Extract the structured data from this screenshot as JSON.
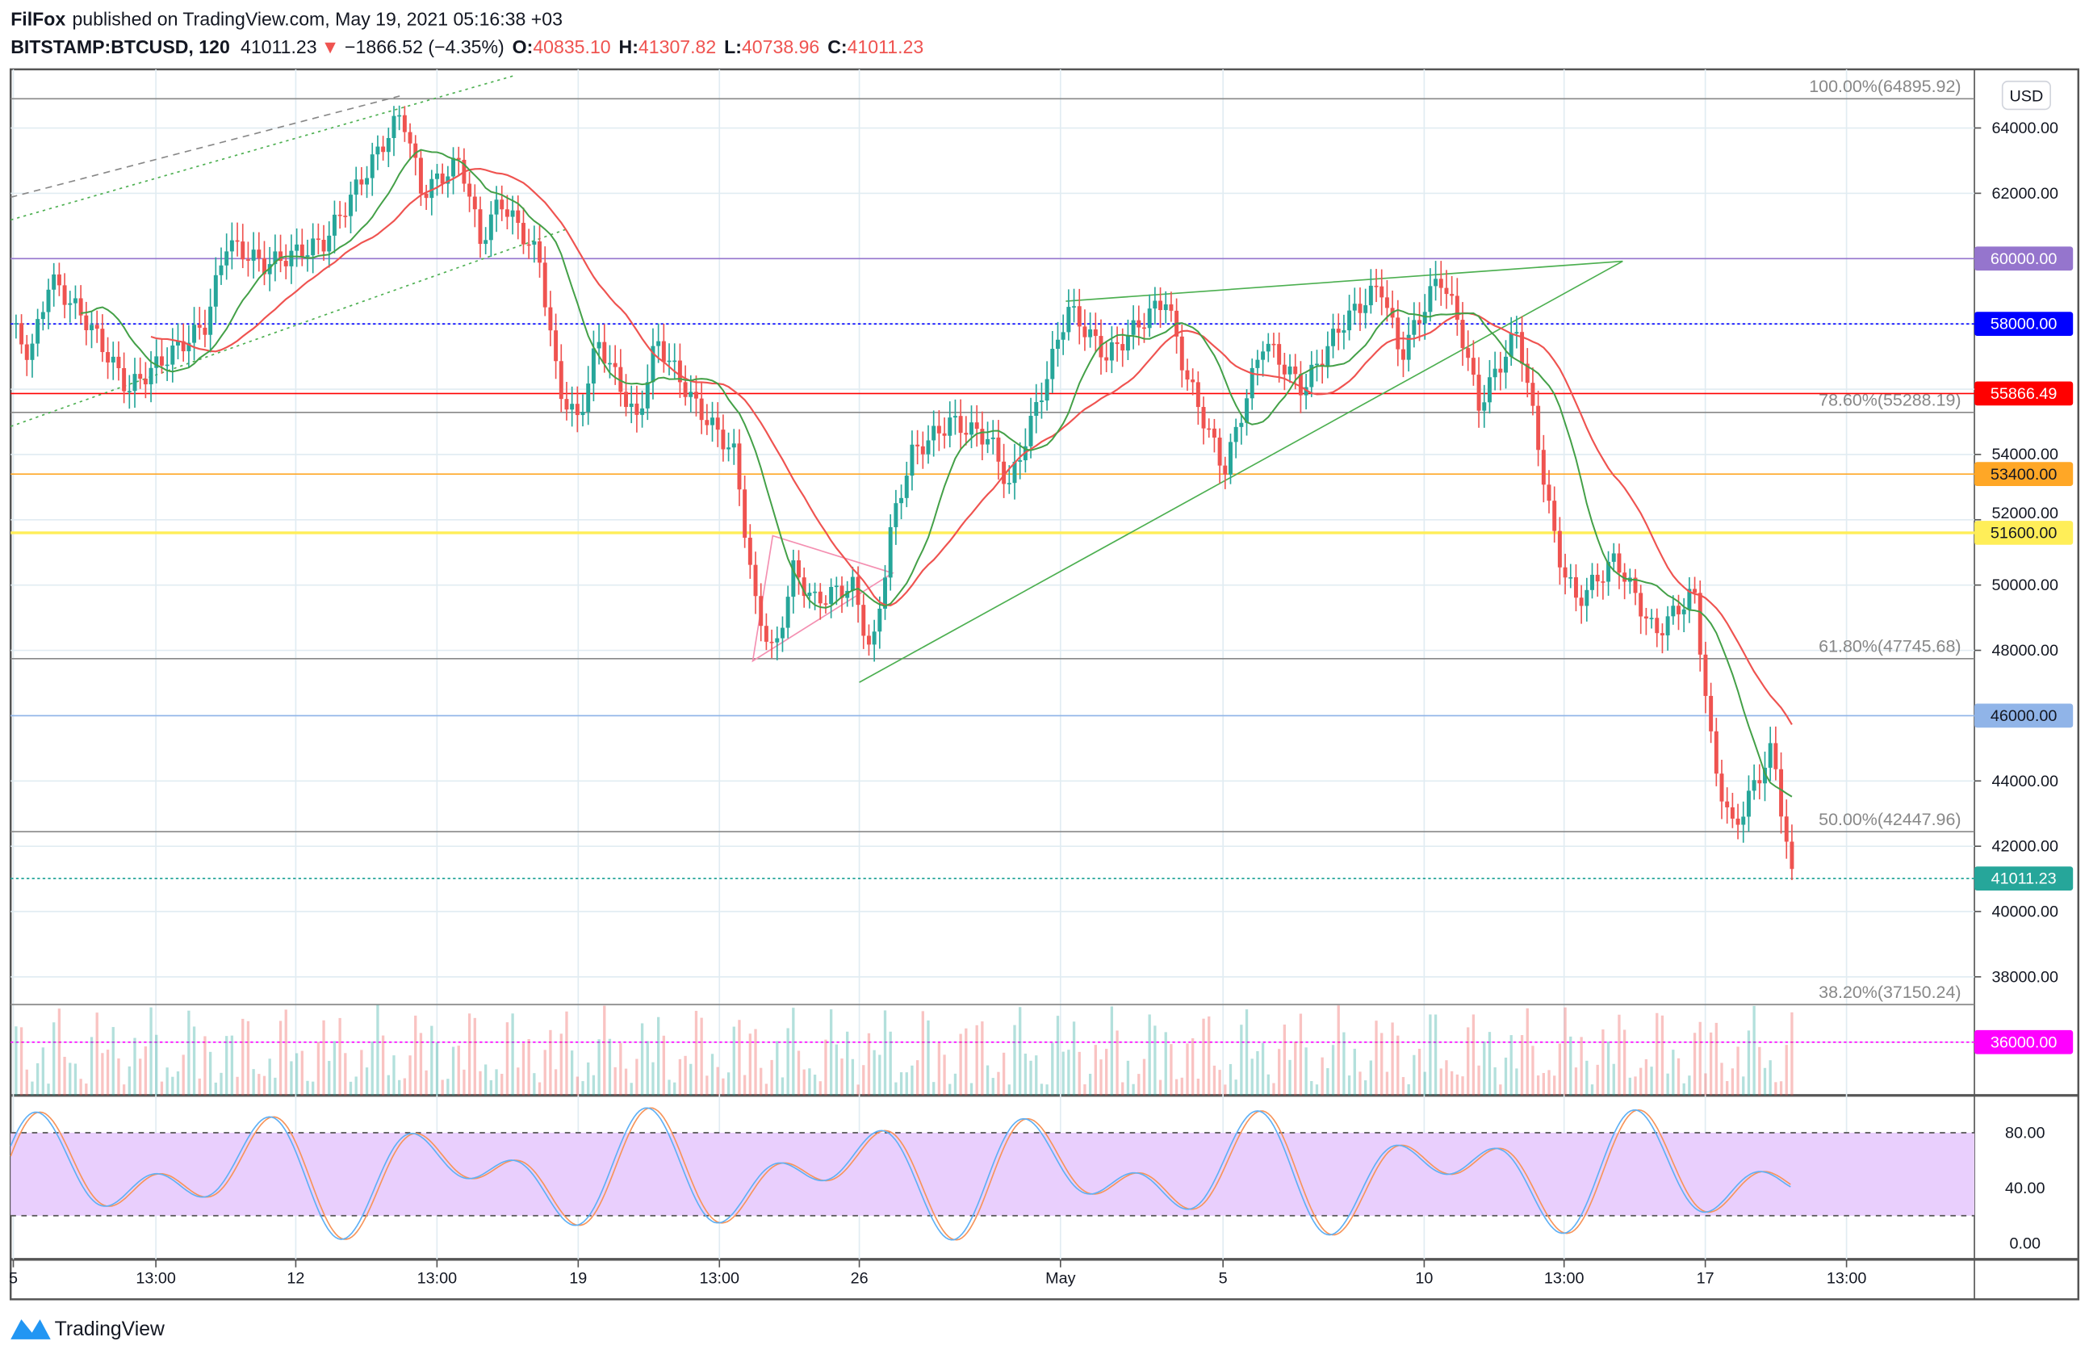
{
  "header": {
    "author": "FilFox",
    "published": "published on TradingView.com, May 19, 2021 05:16:38 +03",
    "symbol": "BITSTAMP:BTCUSD, 120",
    "last": "41011.23",
    "change": "−1866.52 (−4.35%)",
    "o_label": "O:",
    "o": "40835.10",
    "h_label": "H:",
    "h": "41307.82",
    "l_label": "L:",
    "l": "40738.96",
    "c_label": "C:",
    "c": "41011.23"
  },
  "currency_button": "USD",
  "footer_logo": "TradingView",
  "colors": {
    "up": "#26a69a",
    "down": "#ef5350",
    "stoch_fill": "#e9cffd",
    "k": "#5eb0f5",
    "d": "#f7945a"
  },
  "chart_data": {
    "type": "candlestick",
    "title": "BITSTAMP:BTCUSD, 120",
    "ylabel": "USD",
    "ylim": [
      34600,
      65500
    ],
    "y_ticks": [
      "64000.00",
      "62000.00",
      "60000.00",
      "58000.00",
      "54000.00",
      "52000.00",
      "50000.00",
      "48000.00",
      "44000.00",
      "42000.00",
      "40000.00",
      "38000.00"
    ],
    "x_ticks": [
      "5",
      "13:00",
      "12",
      "13:00",
      "19",
      "13:00",
      "26",
      "May",
      "5",
      "10",
      "13:00",
      "17",
      "13:00"
    ],
    "close_path": [
      [
        0,
        58000
      ],
      [
        1,
        57000
      ],
      [
        2,
        59400
      ],
      [
        4,
        58000
      ],
      [
        6,
        56000
      ],
      [
        8,
        57000
      ],
      [
        10,
        58000
      ],
      [
        11,
        60500
      ],
      [
        13,
        59800
      ],
      [
        16,
        60500
      ],
      [
        18,
        62500
      ],
      [
        20,
        64500
      ],
      [
        21,
        62000
      ],
      [
        22,
        62500
      ],
      [
        23,
        63000
      ],
      [
        24,
        60500
      ],
      [
        25,
        61800
      ],
      [
        27,
        60000
      ],
      [
        28,
        56000
      ],
      [
        29,
        55000
      ],
      [
        30,
        57500
      ],
      [
        32,
        55000
      ],
      [
        33,
        57500
      ],
      [
        35,
        55500
      ],
      [
        37,
        54000
      ],
      [
        38,
        49500
      ],
      [
        39,
        47800
      ],
      [
        40,
        50500
      ],
      [
        41,
        49500
      ],
      [
        43,
        50000
      ],
      [
        44,
        47800
      ],
      [
        45,
        51800
      ],
      [
        46,
        54000
      ],
      [
        48,
        55000
      ],
      [
        50,
        54500
      ],
      [
        51,
        53000
      ],
      [
        53,
        56500
      ],
      [
        54,
        58500
      ],
      [
        56,
        57000
      ],
      [
        59,
        58800
      ],
      [
        60,
        56500
      ],
      [
        62,
        53500
      ],
      [
        64,
        57500
      ],
      [
        66,
        56000
      ],
      [
        68,
        58000
      ],
      [
        70,
        59200
      ],
      [
        71,
        57000
      ],
      [
        73,
        59500
      ],
      [
        74,
        58000
      ],
      [
        75,
        55500
      ],
      [
        77,
        57800
      ],
      [
        79,
        51000
      ],
      [
        80,
        49500
      ],
      [
        82,
        50800
      ],
      [
        84,
        48500
      ],
      [
        86,
        49800
      ],
      [
        87,
        44500
      ],
      [
        88,
        42500
      ],
      [
        90,
        45000
      ],
      [
        91,
        41011.23
      ]
    ],
    "levels": [
      {
        "price": 60000,
        "label": "60000.00",
        "color": "#9575cd",
        "style": "solid"
      },
      {
        "price": 58000,
        "label": "58000.00",
        "color": "#0000ff",
        "style": "dotted"
      },
      {
        "price": 55866.49,
        "label": "55866.49",
        "color": "#ff0000",
        "style": "solid"
      },
      {
        "price": 53400,
        "label": "53400.00",
        "color": "#ffa726",
        "style": "solid"
      },
      {
        "price": 51600,
        "label": "51600.00",
        "color": "#ffee58",
        "style": "solid"
      },
      {
        "price": 46000,
        "label": "46000.00",
        "color": "#90b4e8",
        "style": "solid"
      },
      {
        "price": 41011.23,
        "label": "41011.23",
        "color": "#26a69a",
        "style": "dotted"
      },
      {
        "price": 36000,
        "label": "36000.00",
        "color": "#ff00ff",
        "style": "dotted"
      }
    ],
    "fib": [
      {
        "price": 64895.92,
        "label": "100.00%(64895.92)"
      },
      {
        "price": 55288.19,
        "label": "78.60%(55288.19)"
      },
      {
        "price": 47745.68,
        "label": "61.80%(47745.68)"
      },
      {
        "price": 42447.96,
        "label": "50.00%(42447.96)"
      },
      {
        "price": 37150.24,
        "label": "38.20%(37150.24)"
      }
    ],
    "stoch": {
      "ylim": [
        0,
        100
      ],
      "bands": [
        20,
        80
      ],
      "y_ticks": [
        "80.00",
        "40.00",
        "0.00"
      ]
    }
  }
}
